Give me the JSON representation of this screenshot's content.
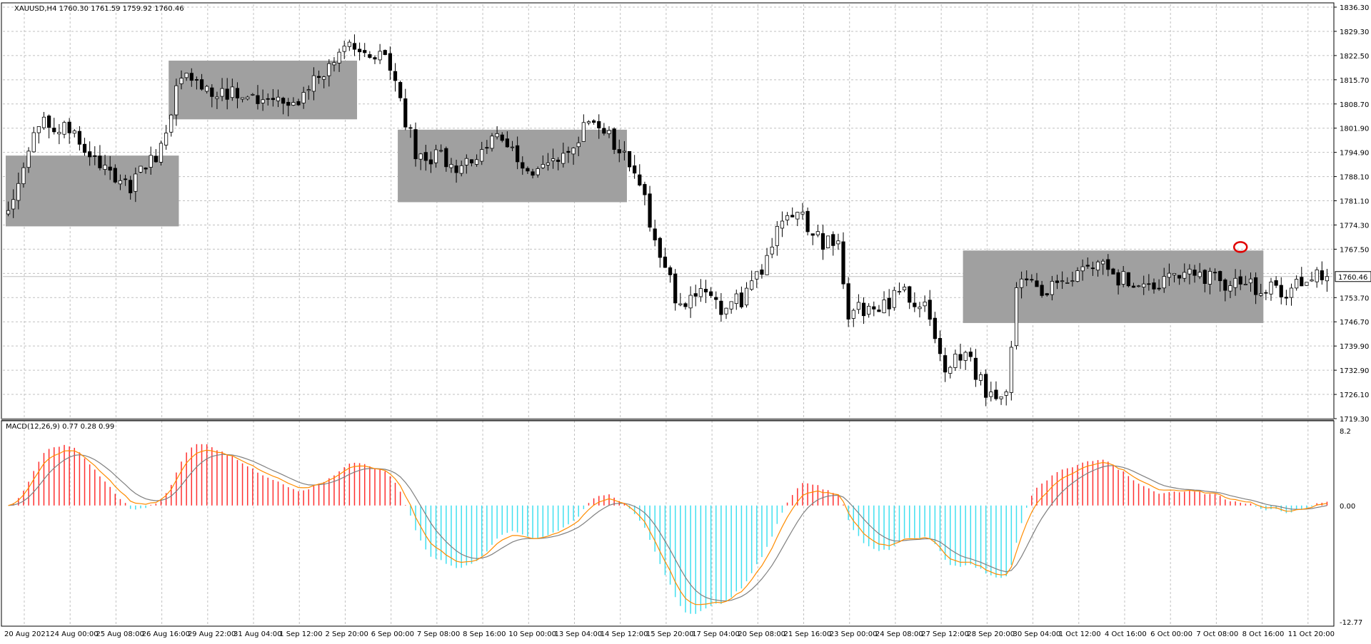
{
  "header": {
    "symbol_info": "XAUUSD,H4  1760.30 1761.59 1759.92 1760.46",
    "macd_info": "MACD(12,26,9) 0.77 0.28 0.99",
    "current_price": "1760.46"
  },
  "colors": {
    "background": "#ffffff",
    "grid": "#c0c0c0",
    "candle_bull": "#ffffff",
    "candle_bear": "#000000",
    "candle_outline": "#000000",
    "box_fill": "#a0a0a0",
    "macd_line": "#ff8c00",
    "signal_line": "#808080",
    "hist_positive": "#ff3030",
    "hist_negative": "#40e0f0",
    "marker": "#e00000"
  },
  "chart_data": [
    {
      "type": "candlestick",
      "symbol": "XAUUSD",
      "timeframe": "H4",
      "grid": true,
      "ylim": [
        1719.3,
        1838.5
      ],
      "y_ticks": [
        "1836.30",
        "1829.30",
        "1822.50",
        "1815.70",
        "1808.70",
        "1801.90",
        "1794.90",
        "1788.10",
        "1781.10",
        "1774.30",
        "1767.50",
        "1760.46",
        "1753.70",
        "1746.70",
        "1739.90",
        "1732.90",
        "1726.10",
        "1719.30"
      ],
      "x_labels": [
        "20 Aug 2021",
        "24 Aug 00:00",
        "25 Aug 08:00",
        "26 Aug 16:00",
        "29 Aug 22:00",
        "31 Aug 04:00",
        "1 Sep 12:00",
        "2 Sep 20:00",
        "6 Sep 00:00",
        "7 Sep 08:00",
        "8 Sep 16:00",
        "10 Sep 00:00",
        "13 Sep 04:00",
        "14 Sep 12:00",
        "15 Sep 20:00",
        "17 Sep 04:00",
        "20 Sep 08:00",
        "21 Sep 16:00",
        "23 Sep 00:00",
        "24 Sep 08:00",
        "27 Sep 12:00",
        "28 Sep 20:00",
        "30 Sep 04:00",
        "1 Oct 12:00",
        "4 Oct 16:00",
        "6 Oct 00:00",
        "7 Oct 08:00",
        "8 Oct 16:00",
        "11 Oct 20:00"
      ],
      "current_price": 1760.46,
      "anchors": [
        {
          "i": 0,
          "p": 1779
        },
        {
          "i": 6,
          "p": 1805
        },
        {
          "i": 12,
          "p": 1804
        },
        {
          "i": 18,
          "p": 1793
        },
        {
          "i": 24,
          "p": 1787
        },
        {
          "i": 30,
          "p": 1797
        },
        {
          "i": 34,
          "p": 1820
        },
        {
          "i": 40,
          "p": 1815
        },
        {
          "i": 48,
          "p": 1812
        },
        {
          "i": 56,
          "p": 1810
        },
        {
          "i": 64,
          "p": 1823
        },
        {
          "i": 68,
          "p": 1828
        },
        {
          "i": 74,
          "p": 1824
        },
        {
          "i": 80,
          "p": 1797
        },
        {
          "i": 88,
          "p": 1793
        },
        {
          "i": 96,
          "p": 1800
        },
        {
          "i": 104,
          "p": 1790
        },
        {
          "i": 110,
          "p": 1795
        },
        {
          "i": 114,
          "p": 1806
        },
        {
          "i": 120,
          "p": 1798
        },
        {
          "i": 124,
          "p": 1788
        },
        {
          "i": 128,
          "p": 1765
        },
        {
          "i": 132,
          "p": 1752
        },
        {
          "i": 136,
          "p": 1757
        },
        {
          "i": 140,
          "p": 1750
        },
        {
          "i": 144,
          "p": 1754
        },
        {
          "i": 148,
          "p": 1763
        },
        {
          "i": 152,
          "p": 1778
        },
        {
          "i": 156,
          "p": 1777
        },
        {
          "i": 160,
          "p": 1770
        },
        {
          "i": 163,
          "p": 1771
        },
        {
          "i": 165,
          "p": 1750
        },
        {
          "i": 170,
          "p": 1752
        },
        {
          "i": 176,
          "p": 1755
        },
        {
          "i": 180,
          "p": 1753
        },
        {
          "i": 184,
          "p": 1735
        },
        {
          "i": 188,
          "p": 1739
        },
        {
          "i": 192,
          "p": 1727
        },
        {
          "i": 196,
          "p": 1726
        },
        {
          "i": 198,
          "p": 1758
        },
        {
          "i": 206,
          "p": 1757
        },
        {
          "i": 210,
          "p": 1760
        },
        {
          "i": 214,
          "p": 1767
        },
        {
          "i": 218,
          "p": 1760
        },
        {
          "i": 224,
          "p": 1758
        },
        {
          "i": 230,
          "p": 1762
        },
        {
          "i": 236,
          "p": 1760
        },
        {
          "i": 242,
          "p": 1757
        },
        {
          "i": 248,
          "p": 1758
        },
        {
          "i": 252,
          "p": 1756
        },
        {
          "i": 256,
          "p": 1762
        },
        {
          "i": 259,
          "p": 1760.46
        }
      ],
      "candle_count": 260,
      "annotations": [
        {
          "type": "rectangle",
          "from_candle": 0,
          "to_candle": 33,
          "price_top": 1795.5,
          "price_bottom": 1775
        },
        {
          "type": "rectangle",
          "from_candle": 32,
          "to_candle": 68,
          "price_top": 1823.0,
          "price_bottom": 1806.0
        },
        {
          "type": "rectangle",
          "from_candle": 77,
          "to_candle": 121,
          "price_top": 1803.0,
          "price_bottom": 1782.0
        },
        {
          "type": "rectangle",
          "from_candle": 188,
          "to_candle": 246,
          "price_top": 1768.0,
          "price_bottom": 1747.0
        },
        {
          "type": "circle-marker",
          "candle": 242,
          "price": 1769.0
        }
      ]
    },
    {
      "type": "macd",
      "title": "MACD(12,26,9)",
      "params": [
        12,
        26,
        9
      ],
      "ylim": [
        -12.77,
        8.2
      ],
      "y_ticks": [
        "8.2",
        "0.00",
        "-12.77"
      ],
      "grid": true
    }
  ]
}
